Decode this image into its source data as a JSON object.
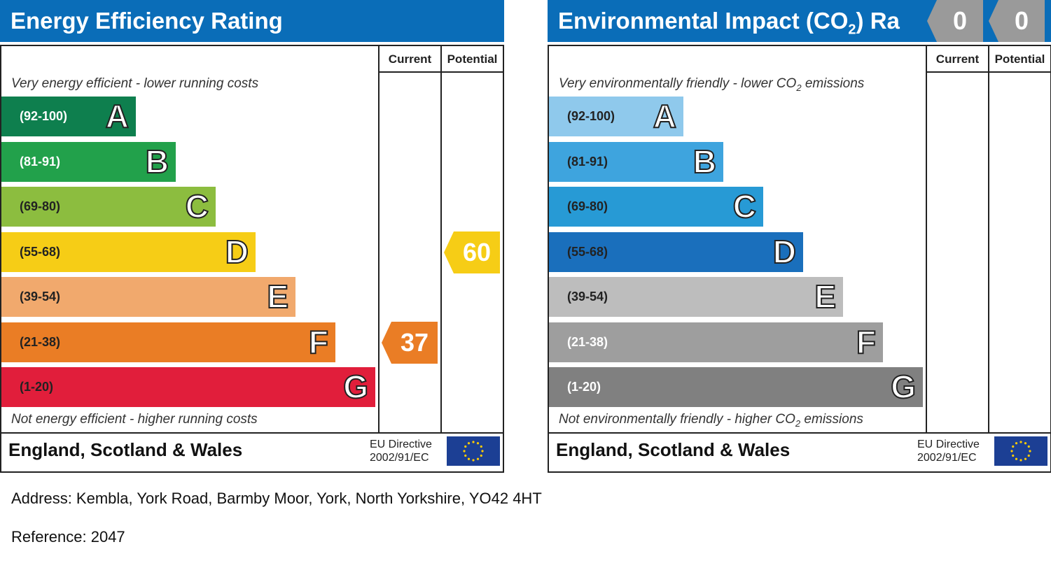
{
  "chart_data": [
    {
      "type": "bar",
      "title": "Energy Efficiency Rating",
      "categories": [
        "A",
        "B",
        "C",
        "D",
        "E",
        "F",
        "G"
      ],
      "ranges": [
        "(92-100)",
        "(81-91)",
        "(69-80)",
        "(55-68)",
        "(39-54)",
        "(21-38)",
        "(1-20)"
      ],
      "band_colors": [
        "#0e7f4e",
        "#22a14b",
        "#8cbd3f",
        "#f6cd16",
        "#f1a96d",
        "#ea7d25",
        "#e11e3b"
      ],
      "range_text_colors": [
        "#ffffff",
        "#ffffff",
        "#222222",
        "#222222",
        "#222222",
        "#222222",
        "#222222"
      ],
      "top_caption": "Very energy efficient - lower running costs",
      "bottom_caption": "Not energy efficient - higher running costs",
      "column_headers": [
        "Current",
        "Potential"
      ],
      "current": {
        "value": "37",
        "band": "F",
        "color": "#ea7d25"
      },
      "potential": {
        "value": "60",
        "band": "D",
        "color": "#f6cd16"
      },
      "footer": {
        "region": "England, Scotland & Wales",
        "eu_line1": "EU Directive",
        "eu_line2": "2002/91/EC"
      }
    },
    {
      "type": "bar",
      "title": "Environmental Impact (CO",
      "title_sub": "2",
      "title_tail": ") Ra",
      "categories": [
        "A",
        "B",
        "C",
        "D",
        "E",
        "F",
        "G"
      ],
      "ranges": [
        "(92-100)",
        "(81-91)",
        "(69-80)",
        "(55-68)",
        "(39-54)",
        "(21-38)",
        "(1-20)"
      ],
      "band_colors": [
        "#8fc9ec",
        "#3ea4de",
        "#279ad5",
        "#1a6fbc",
        "#bdbdbd",
        "#9e9e9e",
        "#808080"
      ],
      "range_text_colors": [
        "#222222",
        "#222222",
        "#222222",
        "#222222",
        "#222222",
        "#ffffff",
        "#ffffff"
      ],
      "top_caption": "Very environmentally friendly - lower CO",
      "top_caption_sub": "2",
      "top_caption_tail": " emissions",
      "bottom_caption": "Not environmentally friendly - higher CO",
      "bottom_caption_sub": "2",
      "bottom_caption_tail": " emissions",
      "column_headers": [
        "Current",
        "Potential"
      ],
      "current": {
        "value": "0",
        "color": "#9a9a9a"
      },
      "potential": {
        "value": "0",
        "color": "#9a9a9a"
      },
      "footer": {
        "region": "England, Scotland & Wales",
        "eu_line1": "EU Directive",
        "eu_line2": "2002/91/EC"
      }
    }
  ],
  "address": "Address: Kembla, York Road, Barmby Moor, York, North Yorkshire, YO42 4HT",
  "reference": "Reference: 2047"
}
